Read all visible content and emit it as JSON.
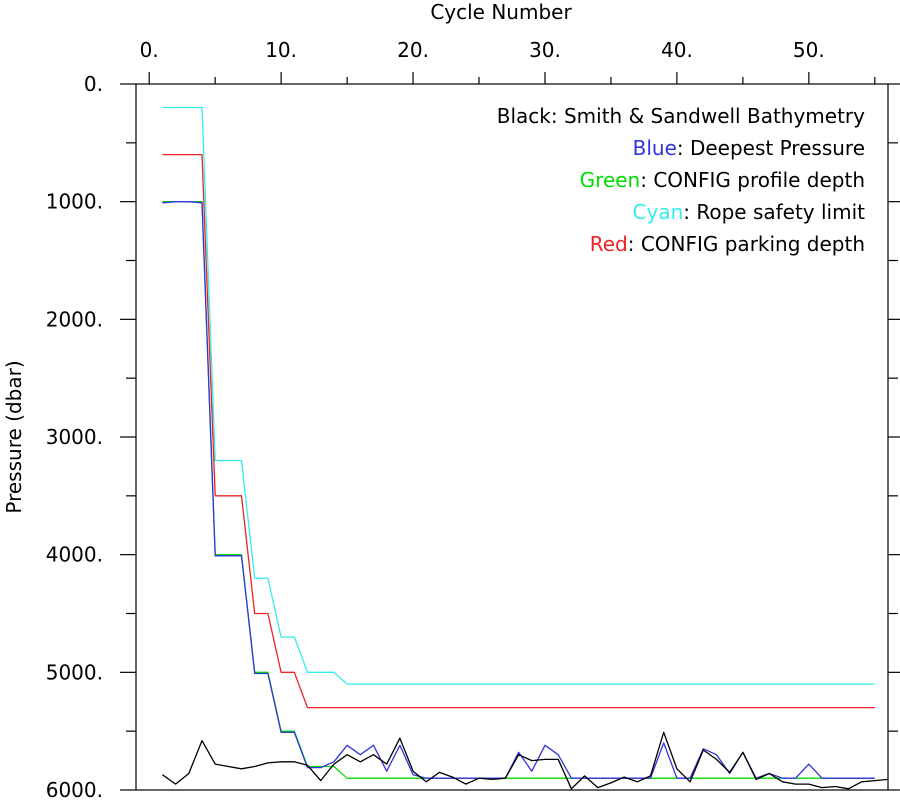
{
  "chart_data": {
    "type": "line",
    "xlabel": "Cycle Number",
    "ylabel": "Pressure (dbar)",
    "xlim": [
      -1,
      56
    ],
    "ylim": [
      0,
      6000
    ],
    "y_inverted": true,
    "x_ticks": [
      0,
      10,
      20,
      30,
      40,
      50
    ],
    "x_tick_labels": [
      "0.",
      "10.",
      "20.",
      "30.",
      "40.",
      "50."
    ],
    "y_ticks": [
      0,
      1000,
      2000,
      3000,
      4000,
      5000,
      6000
    ],
    "y_tick_labels": [
      "0.",
      "1000.",
      "2000.",
      "3000.",
      "4000.",
      "5000.",
      "6000."
    ],
    "legend_placement": "top-right",
    "legend": [
      {
        "color_word": "Black",
        "rest": ": Smith & Sandwell Bathymetry",
        "color": "#000000"
      },
      {
        "color_word": "Blue",
        "rest": ": Deepest Pressure",
        "color": "#3333dd"
      },
      {
        "color_word": "Green",
        "rest": ": CONFIG profile depth",
        "color": "#00dd00"
      },
      {
        "color_word": "Cyan",
        "rest": ": Rope safety limit",
        "color": "#33eeee"
      },
      {
        "color_word": "Red",
        "rest": ": CONFIG parking depth",
        "color": "#ee2222"
      }
    ],
    "series": [
      {
        "color": "#33eeee",
        "step": true,
        "x": [
          1,
          4,
          5,
          7,
          8,
          9,
          10,
          11,
          12,
          14,
          15,
          55
        ],
        "values": [
          200,
          200,
          3200,
          3200,
          4200,
          4200,
          4700,
          4700,
          5000,
          5000,
          5100,
          5100
        ]
      },
      {
        "color": "#ee2222",
        "step": true,
        "x": [
          1,
          4,
          5,
          7,
          8,
          9,
          10,
          11,
          12,
          55
        ],
        "values": [
          600,
          600,
          3500,
          3500,
          4500,
          4500,
          5000,
          5000,
          5300,
          5300
        ]
      },
      {
        "color": "#00dd00",
        "step": true,
        "x": [
          1,
          4,
          5,
          7,
          8,
          9,
          10,
          11,
          12,
          14,
          15,
          55
        ],
        "values": [
          1000,
          1000,
          4000,
          4000,
          5000,
          5000,
          5500,
          5500,
          5800,
          5800,
          5900,
          5900
        ]
      },
      {
        "color": "#3333dd",
        "step": false,
        "x": [
          1,
          2,
          3,
          4,
          5,
          6,
          7,
          8,
          9,
          10,
          11,
          12,
          13,
          14,
          15,
          16,
          17,
          18,
          19,
          20,
          21,
          22,
          23,
          24,
          25,
          26,
          27,
          28,
          29,
          30,
          31,
          32,
          33,
          34,
          35,
          36,
          37,
          38,
          39,
          40,
          41,
          42,
          43,
          44,
          45,
          46,
          47,
          48,
          49,
          50,
          51,
          52,
          53,
          54,
          55
        ],
        "values": [
          1010,
          1000,
          1000,
          1010,
          4010,
          4010,
          4010,
          5010,
          5010,
          5510,
          5510,
          5810,
          5810,
          5760,
          5620,
          5700,
          5620,
          5840,
          5620,
          5870,
          5900,
          5900,
          5900,
          5900,
          5900,
          5900,
          5900,
          5680,
          5840,
          5620,
          5700,
          5900,
          5900,
          5900,
          5900,
          5900,
          5900,
          5900,
          5600,
          5900,
          5900,
          5650,
          5700,
          5860,
          5680,
          5900,
          5860,
          5900,
          5900,
          5780,
          5900,
          5900,
          5900,
          5900,
          5900
        ]
      },
      {
        "color": "#000000",
        "step": false,
        "x": [
          1,
          2,
          3,
          4,
          5,
          6,
          7,
          8,
          9,
          10,
          11,
          12,
          13,
          14,
          15,
          16,
          17,
          18,
          19,
          20,
          21,
          22,
          23,
          24,
          25,
          26,
          27,
          28,
          29,
          30,
          31,
          32,
          33,
          34,
          35,
          36,
          37,
          38,
          39,
          40,
          41,
          42,
          43,
          44,
          45,
          46,
          47,
          48,
          49,
          50,
          51,
          52,
          53,
          54,
          55,
          56
        ],
        "values": [
          5870,
          5950,
          5860,
          5580,
          5780,
          5800,
          5820,
          5800,
          5770,
          5760,
          5760,
          5790,
          5920,
          5780,
          5700,
          5760,
          5700,
          5780,
          5560,
          5840,
          5930,
          5850,
          5890,
          5950,
          5900,
          5910,
          5900,
          5700,
          5750,
          5740,
          5740,
          5990,
          5880,
          5980,
          5940,
          5890,
          5930,
          5880,
          5510,
          5820,
          5930,
          5660,
          5740,
          5850,
          5680,
          5910,
          5860,
          5930,
          5950,
          5950,
          5980,
          5970,
          5990,
          5930,
          5920,
          5910
        ]
      }
    ]
  }
}
